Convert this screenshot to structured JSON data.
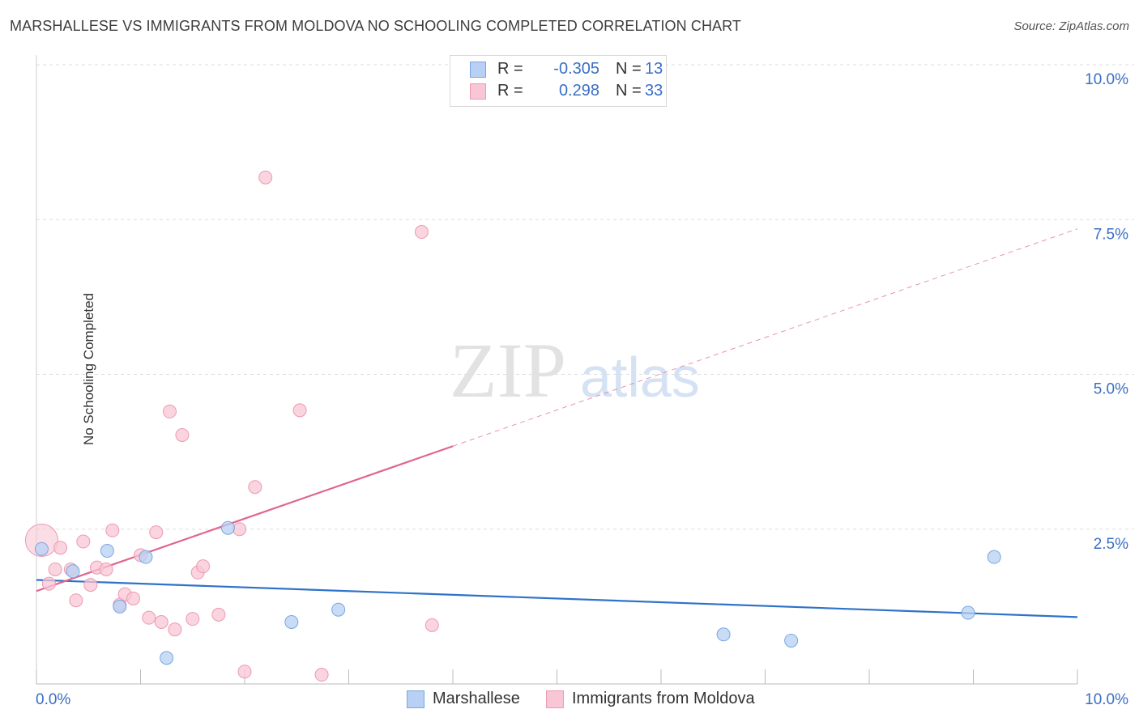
{
  "title": "MARSHALLESE VS IMMIGRANTS FROM MOLDOVA NO SCHOOLING COMPLETED CORRELATION CHART",
  "source": "Source: ZipAtlas.com",
  "watermark": {
    "zip": "ZIP",
    "atlas": "atlas"
  },
  "legend": {
    "rows": [
      {
        "r_label": "R =",
        "r_value": "-0.305",
        "n_label": "N =",
        "n_value": "13"
      },
      {
        "r_label": "R =",
        "r_value": "0.298",
        "n_label": "N =",
        "n_value": "33"
      }
    ]
  },
  "colors": {
    "marshallese_fill": "#b7d0f3",
    "marshallese_stroke": "#7aa6e0",
    "marshallese_line": "#2f72c9",
    "moldova_fill": "#f8c6d4",
    "moldova_stroke": "#ec9ab2",
    "moldova_line": "#e0648f",
    "tick_label": "#3a6fc4",
    "grid": "#dddddd"
  },
  "chart_data": {
    "type": "scatter",
    "title": "MARSHALLESE VS IMMIGRANTS FROM MOLDOVA NO SCHOOLING COMPLETED CORRELATION CHART",
    "xlabel": "",
    "ylabel": "No Schooling Completed",
    "xlim": [
      0,
      10
    ],
    "ylim": [
      0,
      10
    ],
    "x_tick_labels": [
      "0.0%",
      "10.0%"
    ],
    "y_tick_values": [
      2.5,
      5.0,
      7.5,
      10.0
    ],
    "y_tick_labels": [
      "2.5%",
      "5.0%",
      "7.5%",
      "10.0%"
    ],
    "legend_position": "top-center",
    "series": [
      {
        "name": "Marshallese",
        "r": -0.305,
        "n": 13,
        "points": [
          [
            0.05,
            2.18
          ],
          [
            0.35,
            1.82
          ],
          [
            0.68,
            2.15
          ],
          [
            0.8,
            1.25
          ],
          [
            1.05,
            2.05
          ],
          [
            1.25,
            0.42
          ],
          [
            1.84,
            2.52
          ],
          [
            2.45,
            1.0
          ],
          [
            2.9,
            1.2
          ],
          [
            6.6,
            0.8
          ],
          [
            7.25,
            0.7
          ],
          [
            8.95,
            1.15
          ],
          [
            9.2,
            2.05
          ]
        ],
        "trend": {
          "x0": 0,
          "y0": 1.68,
          "x1": 10,
          "y1": 1.08,
          "solid_until": 10
        }
      },
      {
        "name": "Immigrants from Moldova",
        "r": 0.298,
        "n": 33,
        "points": [
          [
            0.05,
            2.32
          ],
          [
            0.12,
            1.62
          ],
          [
            0.18,
            1.85
          ],
          [
            0.23,
            2.2
          ],
          [
            0.38,
            1.35
          ],
          [
            0.33,
            1.85
          ],
          [
            0.45,
            2.3
          ],
          [
            0.52,
            1.6
          ],
          [
            0.58,
            1.88
          ],
          [
            0.67,
            1.85
          ],
          [
            0.73,
            2.48
          ],
          [
            0.8,
            1.28
          ],
          [
            0.85,
            1.45
          ],
          [
            0.93,
            1.38
          ],
          [
            1.0,
            2.08
          ],
          [
            1.08,
            1.07
          ],
          [
            1.15,
            2.45
          ],
          [
            1.2,
            1.0
          ],
          [
            1.28,
            4.4
          ],
          [
            1.33,
            0.88
          ],
          [
            1.4,
            4.02
          ],
          [
            1.5,
            1.05
          ],
          [
            1.55,
            1.8
          ],
          [
            1.6,
            1.9
          ],
          [
            1.75,
            1.12
          ],
          [
            1.95,
            2.5
          ],
          [
            2.0,
            0.2
          ],
          [
            2.1,
            3.18
          ],
          [
            2.2,
            8.18
          ],
          [
            2.53,
            4.42
          ],
          [
            2.74,
            0.15
          ],
          [
            3.7,
            7.3
          ],
          [
            3.8,
            0.95
          ]
        ],
        "trend": {
          "x0": 0,
          "y0": 1.5,
          "x1": 10,
          "y1": 7.35,
          "solid_until": 4.0
        }
      }
    ]
  }
}
